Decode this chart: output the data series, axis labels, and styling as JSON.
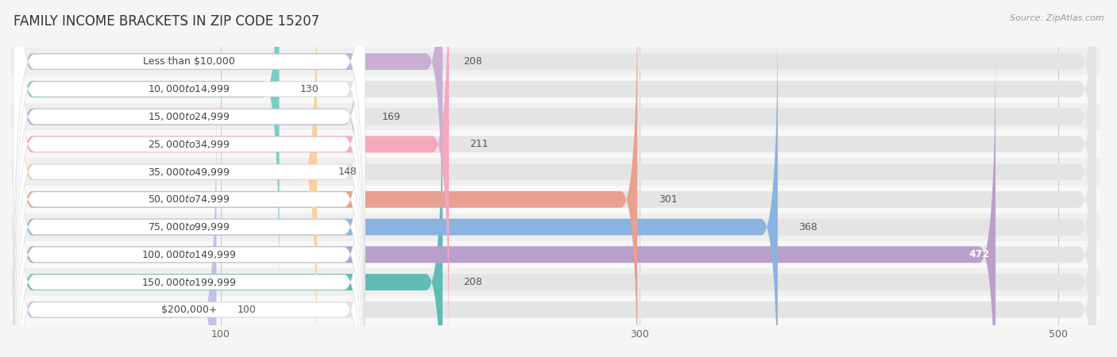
{
  "title": "FAMILY INCOME BRACKETS IN ZIP CODE 15207",
  "source": "Source: ZipAtlas.com",
  "categories": [
    "Less than $10,000",
    "$10,000 to $14,999",
    "$15,000 to $24,999",
    "$25,000 to $34,999",
    "$35,000 to $49,999",
    "$50,000 to $74,999",
    "$75,000 to $99,999",
    "$100,000 to $149,999",
    "$150,000 to $199,999",
    "$200,000+"
  ],
  "values": [
    208,
    130,
    169,
    211,
    148,
    301,
    368,
    472,
    208,
    100
  ],
  "bar_colors": [
    "#c9aed6",
    "#7bcdc8",
    "#aea8d3",
    "#f7a8bc",
    "#f9cfa0",
    "#e8a090",
    "#8ab4e0",
    "#b89fcc",
    "#5dbdb5",
    "#c5c0e8"
  ],
  "row_colors": [
    "#f8f8f8",
    "#efefef"
  ],
  "background_color": "#f5f5f5",
  "xlim": [
    0,
    520
  ],
  "xticks": [
    100,
    300,
    500
  ],
  "title_fontsize": 12,
  "label_fontsize": 9,
  "value_fontsize": 9,
  "bar_height": 0.6,
  "figsize": [
    14.06,
    4.5
  ]
}
